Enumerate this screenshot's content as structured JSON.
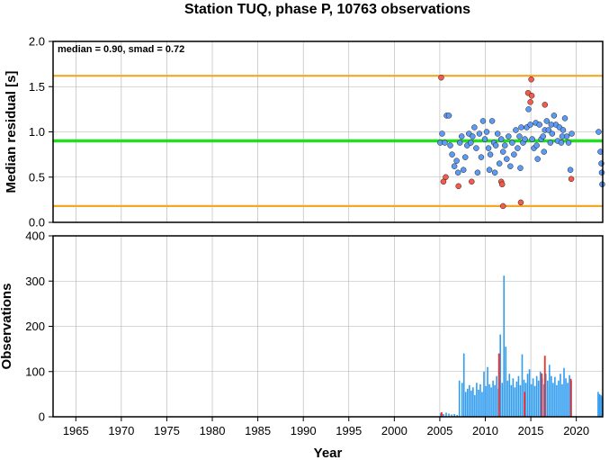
{
  "chart_data": [
    {
      "type": "scatter",
      "title": "Station TUQ, phase P, 10763 observations",
      "ylabel": "Median residual [s]",
      "annotation": "median = 0.90, smad = 0.72",
      "xlim": [
        1962.5,
        2022.9
      ],
      "ylim": [
        0.0,
        2.0
      ],
      "yticks": [
        "0.0",
        "0.5",
        "1.0",
        "1.5",
        "2.0"
      ],
      "grid": true,
      "reference_lines": [
        {
          "y": 0.9,
          "color": "#22dd22"
        },
        {
          "y": 1.62,
          "color": "#f5a623"
        },
        {
          "y": 0.18,
          "color": "#f5a623"
        }
      ],
      "colors": {
        "normal": "#5b9bf5",
        "outlier": "#f55b4b"
      },
      "series": [
        {
          "points": [
            [
              2005.05,
              0.88
            ],
            [
              2005.25,
              0.98
            ],
            [
              2005.55,
              0.88
            ],
            [
              2005.75,
              1.18
            ],
            [
              2006.0,
              1.18
            ],
            [
              2006.15,
              0.85
            ],
            [
              2006.35,
              0.75
            ],
            [
              2006.6,
              0.62
            ],
            [
              2006.85,
              0.68
            ],
            [
              2007.0,
              0.55
            ],
            [
              2007.2,
              0.88
            ],
            [
              2007.4,
              0.95
            ],
            [
              2007.6,
              0.58
            ],
            [
              2007.8,
              0.72
            ],
            [
              2008.0,
              0.85
            ],
            [
              2008.2,
              0.98
            ],
            [
              2008.4,
              0.88
            ],
            [
              2008.6,
              0.95
            ],
            [
              2008.8,
              1.05
            ],
            [
              2009.0,
              0.82
            ],
            [
              2009.15,
              0.55
            ],
            [
              2009.35,
              0.98
            ],
            [
              2009.55,
              0.72
            ],
            [
              2009.75,
              1.12
            ],
            [
              2009.95,
              0.92
            ],
            [
              2010.15,
              1.0
            ],
            [
              2010.35,
              0.82
            ],
            [
              2010.55,
              0.75
            ],
            [
              2010.75,
              1.12
            ],
            [
              2010.95,
              0.88
            ],
            [
              2011.15,
              0.85
            ],
            [
              2011.35,
              0.98
            ],
            [
              2011.55,
              0.65
            ],
            [
              2011.75,
              0.92
            ],
            [
              2011.95,
              0.78
            ],
            [
              2012.15,
              0.85
            ],
            [
              2012.35,
              0.7
            ],
            [
              2012.55,
              0.95
            ],
            [
              2012.75,
              0.62
            ],
            [
              2012.95,
              0.88
            ],
            [
              2013.15,
              0.75
            ],
            [
              2013.35,
              1.02
            ],
            [
              2013.55,
              0.82
            ],
            [
              2013.75,
              0.95
            ],
            [
              2013.95,
              1.05
            ],
            [
              2014.15,
              0.88
            ],
            [
              2014.35,
              0.92
            ],
            [
              2014.55,
              1.05
            ],
            [
              2014.75,
              1.25
            ],
            [
              2014.95,
              1.08
            ],
            [
              2015.15,
              0.92
            ],
            [
              2015.35,
              0.82
            ],
            [
              2015.55,
              1.1
            ],
            [
              2015.75,
              0.7
            ],
            [
              2015.95,
              1.08
            ],
            [
              2016.15,
              0.92
            ],
            [
              2016.35,
              0.95
            ],
            [
              2016.55,
              1.02
            ],
            [
              2016.75,
              1.12
            ],
            [
              2016.95,
              1.02
            ],
            [
              2017.15,
              0.88
            ],
            [
              2017.35,
              0.98
            ],
            [
              2017.55,
              1.18
            ],
            [
              2017.75,
              1.08
            ],
            [
              2017.95,
              0.9
            ],
            [
              2018.15,
              1.05
            ],
            [
              2018.35,
              0.88
            ],
            [
              2018.55,
              1.02
            ],
            [
              2018.75,
              1.15
            ],
            [
              2018.95,
              0.95
            ],
            [
              2019.15,
              0.88
            ],
            [
              2019.35,
              0.58
            ],
            [
              2019.5,
              0.98
            ],
            [
              2010.45,
              0.58
            ],
            [
              2011.05,
              0.55
            ],
            [
              2013.85,
              0.6
            ],
            [
              2015.65,
              0.85
            ],
            [
              2016.45,
              0.78
            ],
            [
              2017.25,
              1.08
            ],
            [
              2018.45,
              0.95
            ],
            [
              2022.45,
              1.0
            ],
            [
              2022.65,
              0.78
            ],
            [
              2022.75,
              0.65
            ],
            [
              2022.8,
              0.55
            ],
            [
              2022.85,
              0.42
            ]
          ]
        },
        {
          "name": "outliers",
          "points": [
            [
              2005.15,
              1.6
            ],
            [
              2005.4,
              0.45
            ],
            [
              2005.65,
              0.5
            ],
            [
              2007.05,
              0.4
            ],
            [
              2008.5,
              0.45
            ],
            [
              2011.75,
              0.45
            ],
            [
              2011.85,
              0.42
            ],
            [
              2011.95,
              0.18
            ],
            [
              2013.9,
              0.22
            ],
            [
              2014.7,
              1.43
            ],
            [
              2014.95,
              1.33
            ],
            [
              2015.1,
              1.4
            ],
            [
              2015.05,
              1.58
            ],
            [
              2016.55,
              1.3
            ],
            [
              2019.45,
              0.48
            ]
          ]
        }
      ]
    },
    {
      "type": "bar",
      "ylabel": "Observations",
      "xlabel": "Year",
      "xlim": [
        1962.5,
        2022.9
      ],
      "ylim": [
        0,
        400
      ],
      "yticks": [
        "0",
        "100",
        "200",
        "300",
        "400"
      ],
      "xticks": [
        "1965",
        "1970",
        "1975",
        "1980",
        "1985",
        "1990",
        "1995",
        "2000",
        "2005",
        "2010",
        "2015",
        "2020"
      ],
      "grid": true,
      "colors": {
        "normal": "#2f9cf0",
        "outlier": "#f02f2f"
      },
      "series": [
        {
          "bars": [
            [
              2005.1,
              8
            ],
            [
              2005.4,
              6
            ],
            [
              2005.7,
              9
            ],
            [
              2006.0,
              7
            ],
            [
              2006.3,
              5
            ],
            [
              2006.6,
              6
            ],
            [
              2006.9,
              4
            ],
            [
              2007.15,
              80
            ],
            [
              2007.45,
              75
            ],
            [
              2007.65,
              140
            ],
            [
              2007.85,
              55
            ],
            [
              2008.05,
              62
            ],
            [
              2008.25,
              70
            ],
            [
              2008.45,
              58
            ],
            [
              2008.65,
              65
            ],
            [
              2008.85,
              48
            ],
            [
              2009.05,
              75
            ],
            [
              2009.25,
              60
            ],
            [
              2009.45,
              72
            ],
            [
              2009.65,
              55
            ],
            [
              2009.85,
              100
            ],
            [
              2010.05,
              68
            ],
            [
              2010.25,
              110
            ],
            [
              2010.45,
              72
            ],
            [
              2010.65,
              65
            ],
            [
              2010.85,
              80
            ],
            [
              2011.05,
              70
            ],
            [
              2011.25,
              90
            ],
            [
              2011.45,
              62
            ],
            [
              2011.65,
              182
            ],
            [
              2011.85,
              75
            ],
            [
              2012.05,
              312
            ],
            [
              2012.25,
              155
            ],
            [
              2012.45,
              80
            ],
            [
              2012.65,
              95
            ],
            [
              2012.85,
              70
            ],
            [
              2013.05,
              85
            ],
            [
              2013.25,
              65
            ],
            [
              2013.45,
              78
            ],
            [
              2013.65,
              90
            ],
            [
              2013.85,
              70
            ],
            [
              2014.05,
              138
            ],
            [
              2014.25,
              82
            ],
            [
              2014.45,
              75
            ],
            [
              2014.65,
              95
            ],
            [
              2014.85,
              105
            ],
            [
              2015.05,
              72
            ],
            [
              2015.25,
              85
            ],
            [
              2015.45,
              68
            ],
            [
              2015.65,
              90
            ],
            [
              2015.85,
              80
            ],
            [
              2016.05,
              100
            ],
            [
              2016.25,
              85
            ],
            [
              2016.45,
              72
            ],
            [
              2016.65,
              95
            ],
            [
              2016.85,
              80
            ],
            [
              2017.05,
              115
            ],
            [
              2017.25,
              90
            ],
            [
              2017.45,
              75
            ],
            [
              2017.65,
              88
            ],
            [
              2017.85,
              70
            ],
            [
              2018.05,
              80
            ],
            [
              2018.25,
              95
            ],
            [
              2018.45,
              72
            ],
            [
              2018.65,
              108
            ],
            [
              2018.85,
              85
            ],
            [
              2019.05,
              75
            ],
            [
              2019.25,
              92
            ],
            [
              2019.45,
              80
            ],
            [
              2022.4,
              55
            ],
            [
              2022.55,
              50
            ],
            [
              2022.7,
              48
            ],
            [
              2022.85,
              45
            ]
          ]
        },
        {
          "name": "outliers",
          "bars": [
            [
              2005.2,
              10
            ],
            [
              2011.5,
              140
            ],
            [
              2014.3,
              55
            ],
            [
              2016.2,
              96
            ],
            [
              2016.55,
              135
            ],
            [
              2019.4,
              84
            ]
          ]
        }
      ]
    }
  ]
}
